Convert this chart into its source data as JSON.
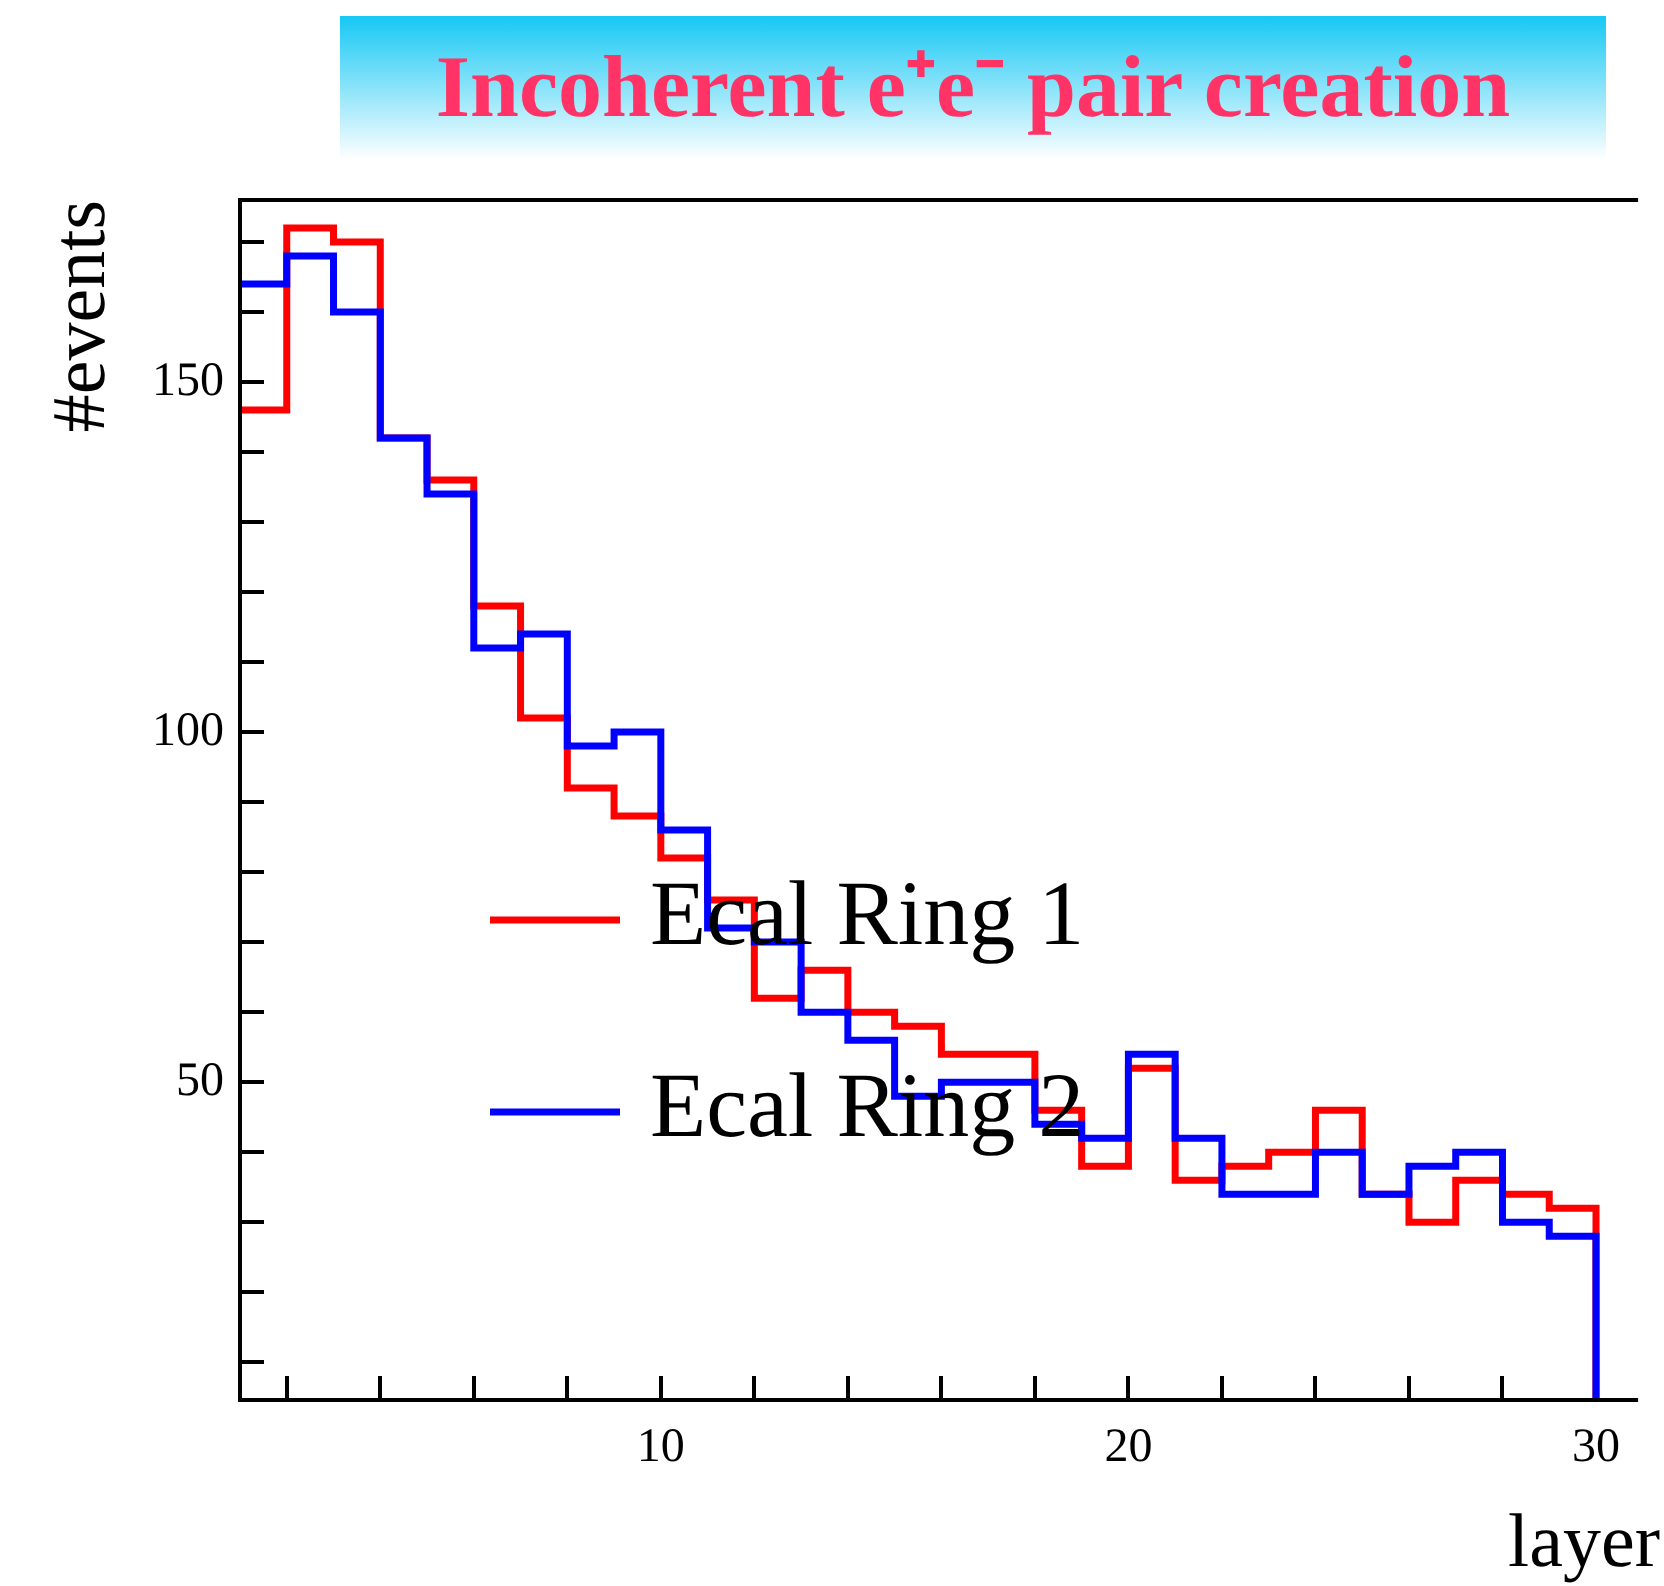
{
  "chart_data": {
    "type": "histogram",
    "title": "Incoherent e⁺e⁻ pair creation",
    "xlabel": "layer",
    "ylabel": "#events",
    "bins": [
      1,
      2,
      3,
      4,
      5,
      6,
      7,
      8,
      9,
      10,
      11,
      12,
      13,
      14,
      15,
      16,
      17,
      18,
      19,
      20,
      21,
      22,
      23,
      24,
      25,
      26,
      27,
      28,
      29,
      30
    ],
    "series": [
      {
        "name": "Ecal Ring 1",
        "color": "#ff0000",
        "values": [
          146,
          172,
          170,
          142,
          136,
          118,
          102,
          92,
          88,
          82,
          76,
          62,
          66,
          60,
          58,
          54,
          54,
          46,
          38,
          52,
          36,
          38,
          40,
          46,
          34,
          30,
          36,
          34,
          32
        ]
      },
      {
        "name": "Ecal Ring 2",
        "color": "#0000ff",
        "values": [
          164,
          168,
          160,
          142,
          134,
          112,
          114,
          98,
          100,
          86,
          72,
          70,
          60,
          56,
          48,
          50,
          50,
          44,
          42,
          54,
          42,
          34,
          34,
          40,
          34,
          38,
          40,
          30,
          28
        ]
      }
    ],
    "xlim": [
      1,
      30.9
    ],
    "xticks": [
      {
        "value": 2,
        "label": null
      },
      {
        "value": 4,
        "label": null
      },
      {
        "value": 6,
        "label": null
      },
      {
        "value": 8,
        "label": null
      },
      10,
      {
        "value": 12,
        "label": null
      },
      {
        "value": 14,
        "label": null
      },
      {
        "value": 16,
        "label": null
      },
      {
        "value": 18,
        "label": null
      },
      20,
      {
        "value": 22,
        "label": null
      },
      {
        "value": 24,
        "label": null
      },
      {
        "value": 26,
        "label": null
      },
      {
        "value": 28,
        "label": null
      },
      30
    ],
    "ylim": [
      4.6,
      176
    ],
    "yticks": [
      {
        "value": 10,
        "label": null
      },
      {
        "value": 20,
        "label": null
      },
      {
        "value": 30,
        "label": null
      },
      {
        "value": 40,
        "label": null
      },
      50,
      {
        "value": 60,
        "label": null
      },
      {
        "value": 70,
        "label": null
      },
      {
        "value": 80,
        "label": null
      },
      {
        "value": 90,
        "label": null
      },
      100,
      {
        "value": 110,
        "label": null
      },
      {
        "value": 120,
        "label": null
      },
      {
        "value": 130,
        "label": null
      },
      {
        "value": 140,
        "label": null
      },
      150,
      {
        "value": 160,
        "label": null
      },
      {
        "value": 170,
        "label": null
      }
    ],
    "grid": false,
    "legend": "left",
    "line_style": "solid"
  }
}
